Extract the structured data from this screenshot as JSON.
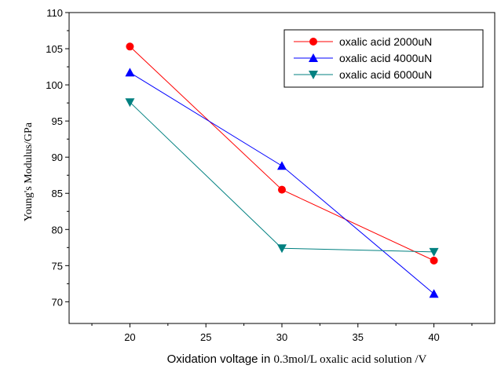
{
  "chart_data": {
    "type": "line",
    "title": "",
    "xlabel_parts": [
      "Oxidation voltage in ",
      "0.3mol/L",
      " oxalic acid solution ",
      "/V"
    ],
    "ylabel": "Young's Modulus/GPa",
    "x": [
      20,
      30,
      40
    ],
    "xlim": [
      16,
      44
    ],
    "ylim": [
      67,
      110
    ],
    "x_ticks": [
      20,
      25,
      30,
      35,
      40
    ],
    "y_ticks": [
      70,
      75,
      80,
      85,
      90,
      95,
      100,
      105,
      110
    ],
    "legend_position": "top-right",
    "grid": false,
    "series": [
      {
        "name": "oxalic acid 2000uN",
        "values": [
          105.3,
          85.5,
          75.7
        ],
        "color": "#ff0000",
        "marker": "circle"
      },
      {
        "name": "oxalic acid 4000uN",
        "values": [
          101.7,
          88.8,
          71.1
        ],
        "color": "#0000ff",
        "marker": "triangle-up"
      },
      {
        "name": "oxalic acid 6000uN",
        "values": [
          97.6,
          77.4,
          76.9
        ],
        "color": "#008080",
        "marker": "triangle-down"
      }
    ]
  }
}
